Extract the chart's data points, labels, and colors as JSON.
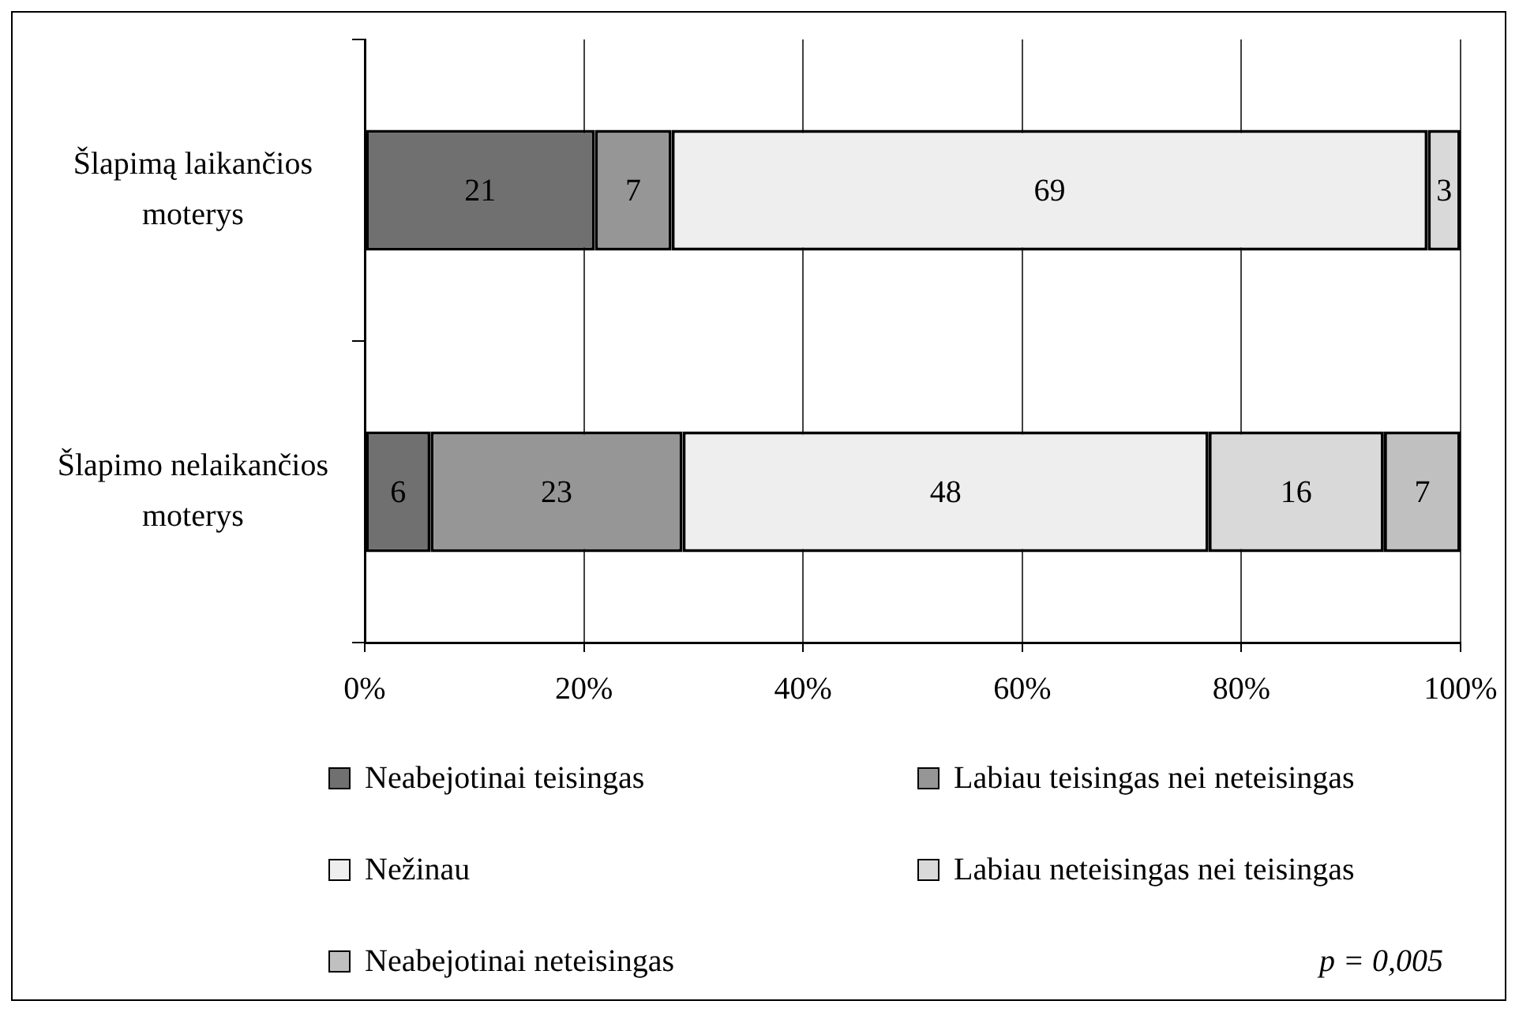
{
  "chart_data": {
    "type": "bar",
    "orientation": "horizontal",
    "stacked": true,
    "categories": [
      "Šlapimą laikančios moterys",
      "Šlapimo nelaikančios moterys"
    ],
    "series": [
      {
        "name": "Neabejotinai teisingas",
        "color": "#707070",
        "values": [
          21,
          6
        ]
      },
      {
        "name": "Labiau teisingas nei neteisingas",
        "color": "#969696",
        "values": [
          7,
          23
        ]
      },
      {
        "name": "Nežinau",
        "color": "#eeeeee",
        "values": [
          69,
          48
        ]
      },
      {
        "name": "Labiau neteisingas nei teisingas",
        "color": "#d9d9d9",
        "values": [
          3,
          16
        ]
      },
      {
        "name": "Neabejotinai neteisingas",
        "color": "#c0c0c0",
        "values": [
          null,
          7
        ]
      }
    ],
    "xlim": [
      0,
      100
    ],
    "xticks": [
      {
        "value": 0,
        "label": "0%"
      },
      {
        "value": 20,
        "label": "20%"
      },
      {
        "value": 40,
        "label": "40%"
      },
      {
        "value": 60,
        "label": "60%"
      },
      {
        "value": 80,
        "label": "80%"
      },
      {
        "value": 100,
        "label": "100%"
      }
    ],
    "data_labels": true,
    "grid": "x",
    "legend": "bottom",
    "annotations": [
      "p = 0,005"
    ]
  }
}
